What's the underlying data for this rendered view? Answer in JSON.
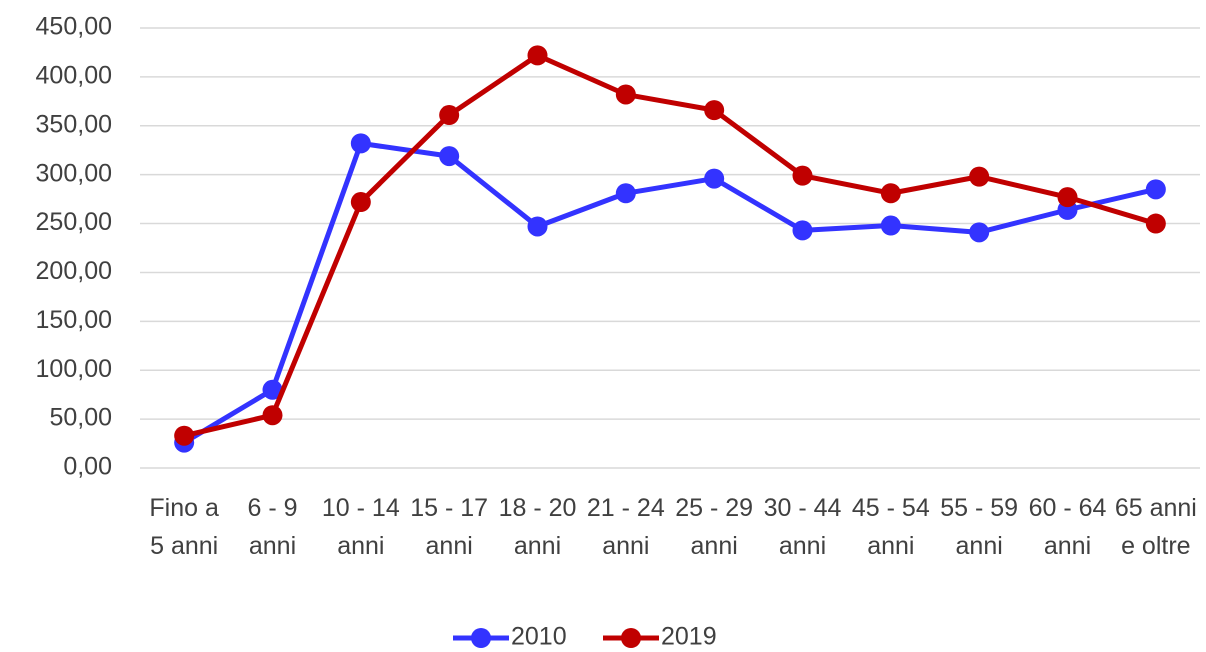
{
  "chart_data": {
    "type": "line",
    "categories": [
      "Fino a 5 anni",
      "6 - 9 anni",
      "10 - 14 anni",
      "15 - 17 anni",
      "18 - 20 anni",
      "21 - 24 anni",
      "25 - 29 anni",
      "30 - 44 anni",
      "45 - 54 anni",
      "55 - 59 anni",
      "60 - 64 anni",
      "65 anni e oltre"
    ],
    "series": [
      {
        "name": "2010",
        "color": "#3333ff",
        "values": [
          26,
          80,
          332,
          319,
          247,
          281,
          296,
          243,
          248,
          241,
          264,
          285
        ]
      },
      {
        "name": "2019",
        "color": "#c00000",
        "values": [
          33,
          54,
          272,
          361,
          422,
          382,
          366,
          299,
          281,
          298,
          277,
          250
        ]
      }
    ],
    "ylim": [
      0,
      450
    ],
    "yticks": [
      {
        "value": 0,
        "label": "0,00"
      },
      {
        "value": 50,
        "label": "50,00"
      },
      {
        "value": 100,
        "label": "100,00"
      },
      {
        "value": 150,
        "label": "150,00"
      },
      {
        "value": 200,
        "label": "200,00"
      },
      {
        "value": 250,
        "label": "250,00"
      },
      {
        "value": 300,
        "label": "300,00"
      },
      {
        "value": 350,
        "label": "350,00"
      },
      {
        "value": 400,
        "label": "400,00"
      },
      {
        "value": 450,
        "label": "450,00"
      }
    ],
    "grid": true,
    "legend": "bottom"
  }
}
